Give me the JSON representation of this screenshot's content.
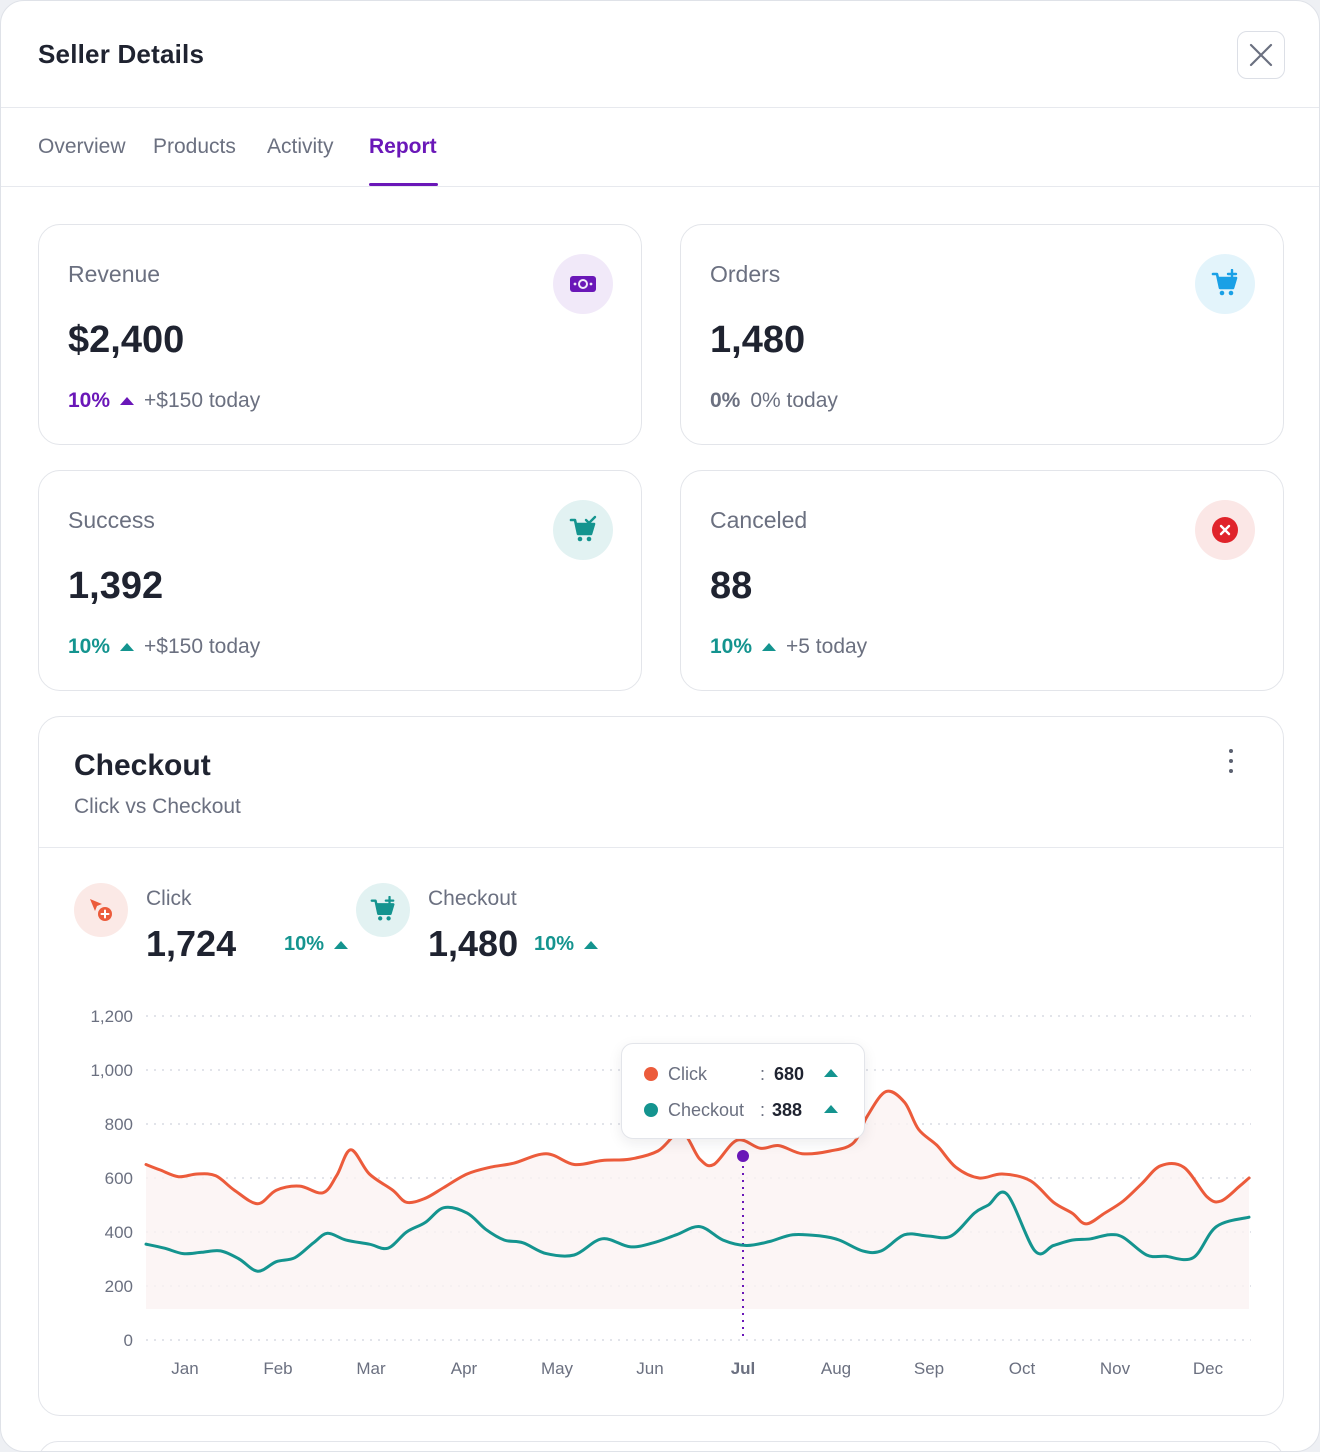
{
  "header": {
    "title": "Seller Details"
  },
  "tabs": [
    {
      "label": "Overview"
    },
    {
      "label": "Products"
    },
    {
      "label": "Activity"
    },
    {
      "label": "Report"
    }
  ],
  "colors": {
    "accent": "#6a17b8",
    "teal": "#14948f",
    "orange": "#ec5b3b",
    "red": "#e0242b",
    "blue": "#1aa0e6"
  },
  "stats": {
    "revenue": {
      "label": "Revenue",
      "value": "$2,400",
      "pct": "10%",
      "today": "+$150 today",
      "icon": "money-icon"
    },
    "orders": {
      "label": "Orders",
      "value": "1,480",
      "pct": "0%",
      "today": "0% today",
      "icon": "cart-plus-icon"
    },
    "success": {
      "label": "Success",
      "value": "1,392",
      "pct": "10%",
      "today": "+$150 today",
      "icon": "cart-check-icon"
    },
    "canceled": {
      "label": "Canceled",
      "value": "88",
      "pct": "10%",
      "today": "+5 today",
      "icon": "close-circle-icon"
    }
  },
  "checkout_card": {
    "title": "Checkout",
    "subtitle": "Click vs Checkout",
    "metrics": {
      "click": {
        "label": "Click",
        "value": "1,724",
        "pct": "10%"
      },
      "checkout": {
        "label": "Checkout",
        "value": "1,480",
        "pct": "10%"
      }
    },
    "tooltip": {
      "click": {
        "name": "Click",
        "colon": ":",
        "value": "680"
      },
      "checkout": {
        "name": "Checkout",
        "colon": ":",
        "value": "388"
      }
    }
  },
  "chart_data": {
    "type": "line",
    "title": "",
    "xlabel": "",
    "ylabel": "",
    "categories": [
      "Jan",
      "Feb",
      "Mar",
      "Apr",
      "May",
      "Jun",
      "Jul",
      "Aug",
      "Sep",
      "Oct",
      "Nov",
      "Dec"
    ],
    "highlight_category": "Jul",
    "ylim": [
      0,
      1200
    ],
    "yticks": [
      "1,200",
      "1,000",
      "800",
      "600",
      "400",
      "200",
      "0"
    ],
    "grid": true,
    "series": [
      {
        "name": "Click",
        "color": "#ec5b3b",
        "x": [
          0,
          0.15,
          0.35,
          0.55,
          0.75,
          0.95,
          1.2,
          1.4,
          1.65,
          1.9,
          2.05,
          2.2,
          2.4,
          2.65,
          2.8,
          3.0,
          3.2,
          3.45,
          3.7,
          3.95,
          4.3,
          4.6,
          4.9,
          5.2,
          5.5,
          5.75,
          5.95,
          6.1,
          6.35,
          6.6,
          6.8,
          7.05,
          7.35,
          7.6,
          7.75,
          7.95,
          8.15,
          8.3,
          8.5,
          8.7,
          8.95,
          9.2,
          9.5,
          9.75,
          9.95,
          10.1,
          10.3,
          10.5,
          10.7,
          10.9,
          11.15,
          11.4,
          11.55,
          11.75,
          11.85
        ],
        "values": [
          650,
          630,
          605,
          615,
          608,
          555,
          505,
          555,
          570,
          545,
          610,
          705,
          615,
          555,
          510,
          525,
          565,
          615,
          640,
          655,
          690,
          650,
          665,
          670,
          700,
          770,
          670,
          650,
          740,
          710,
          720,
          690,
          700,
          730,
          830,
          920,
          880,
          780,
          720,
          640,
          600,
          615,
          590,
          510,
          470,
          430,
          470,
          515,
          580,
          645,
          640,
          530,
          515,
          570,
          600
        ]
      },
      {
        "name": "Checkout",
        "color": "#14948f",
        "x": [
          0,
          0.2,
          0.4,
          0.6,
          0.8,
          1.0,
          1.2,
          1.4,
          1.6,
          1.8,
          1.95,
          2.15,
          2.4,
          2.6,
          2.8,
          3.0,
          3.2,
          3.45,
          3.65,
          3.85,
          4.05,
          4.3,
          4.6,
          4.9,
          5.2,
          5.45,
          5.7,
          5.95,
          6.2,
          6.45,
          6.7,
          6.95,
          7.25,
          7.45,
          7.7,
          7.9,
          8.15,
          8.4,
          8.65,
          8.9,
          9.05,
          9.25,
          9.55,
          9.75,
          9.95,
          10.15,
          10.35,
          10.5,
          10.75,
          10.95,
          11.25,
          11.5,
          11.85
        ],
        "values": [
          355,
          340,
          320,
          325,
          330,
          300,
          255,
          290,
          305,
          360,
          395,
          370,
          355,
          340,
          400,
          435,
          490,
          470,
          410,
          370,
          360,
          320,
          315,
          375,
          345,
          360,
          390,
          420,
          370,
          350,
          365,
          390,
          385,
          370,
          330,
          330,
          390,
          385,
          385,
          470,
          500,
          540,
          330,
          350,
          370,
          375,
          390,
          380,
          315,
          310,
          305,
          420,
          455
        ]
      }
    ]
  }
}
